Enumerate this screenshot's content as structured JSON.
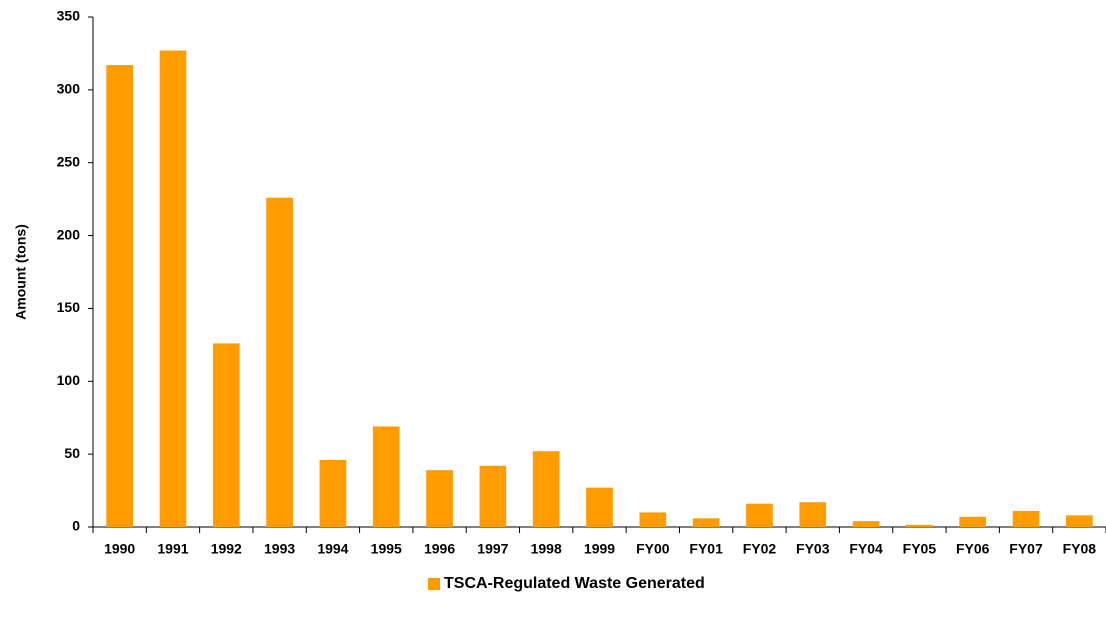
{
  "chart_data": {
    "type": "bar",
    "categories": [
      "1990",
      "1991",
      "1992",
      "1993",
      "1994",
      "1995",
      "1996",
      "1997",
      "1998",
      "1999",
      "FY00",
      "FY01",
      "FY02",
      "FY03",
      "FY04",
      "FY05",
      "FY06",
      "FY07",
      "FY08"
    ],
    "series": [
      {
        "name": "TSCA-Regulated Waste Generated",
        "color": "#ff9c00",
        "values": [
          317,
          327,
          126,
          226,
          46,
          69,
          39,
          42,
          52,
          27,
          10,
          6,
          16,
          17,
          4,
          1.5,
          7,
          11,
          8
        ]
      }
    ],
    "y_label": "Amount (tons)",
    "ylim": [
      0,
      350
    ],
    "yticks": [
      0,
      50,
      100,
      150,
      200,
      250,
      300,
      350
    ],
    "grid": false,
    "legend": "bottom"
  }
}
